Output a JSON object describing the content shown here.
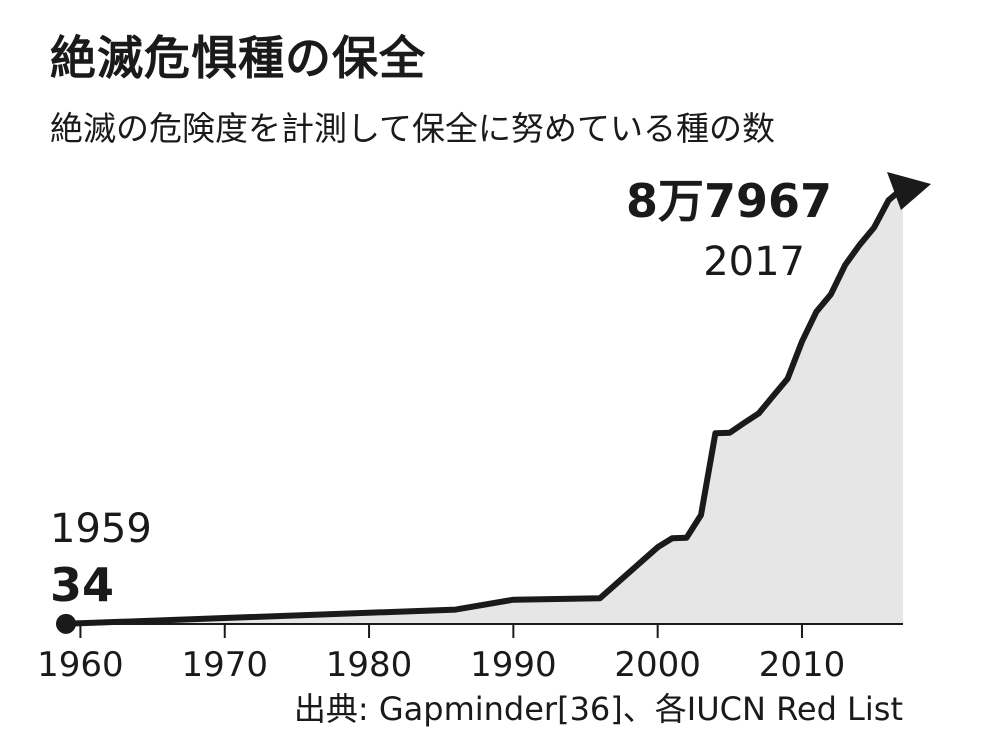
{
  "title": "絶滅危惧種の保全",
  "subtitle": "絶滅の危険度を計測して保全に努めている種の数",
  "source": "出典: Gapminder[36]、各IUCN Red List",
  "annotations": {
    "start_year": "1959",
    "start_value": "34",
    "end_value": "8万7967",
    "end_year": "2017"
  },
  "colors": {
    "line": "#1a1a1a",
    "area_fill": "#e6e6e6"
  },
  "chart_data": {
    "type": "area",
    "title": "絶滅危惧種の保全",
    "xlabel": "",
    "ylabel": "",
    "xlim": [
      1959,
      2017
    ],
    "ylim": [
      0,
      87967
    ],
    "x_ticks": [
      1960,
      1970,
      1980,
      1990,
      2000,
      2010
    ],
    "grid": false,
    "legend": "none",
    "series": [
      {
        "x": [
          1959,
          1986,
          1990,
          1996,
          2000,
          2001,
          2002,
          2003,
          2004,
          2005,
          2006,
          2007,
          2008,
          2009,
          2010,
          2011,
          2012,
          2013,
          2014,
          2015,
          2016,
          2017
        ],
        "values": [
          34,
          2900,
          4900,
          5200,
          15500,
          17300,
          17400,
          22000,
          38500,
          38600,
          40600,
          42500,
          46000,
          49500,
          57000,
          63000,
          66500,
          72500,
          76500,
          80000,
          85500,
          87967
        ]
      }
    ]
  }
}
